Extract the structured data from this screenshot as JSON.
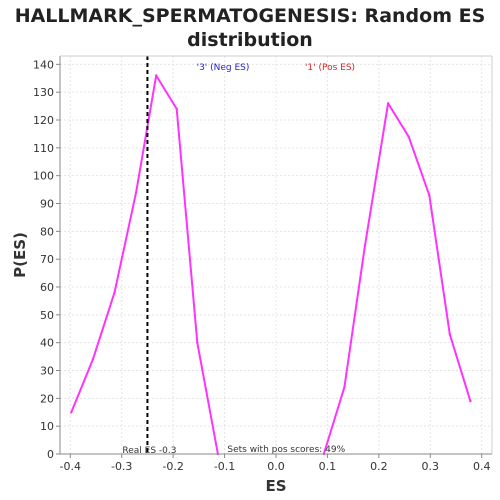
{
  "chart_data": {
    "type": "line",
    "title_lines": [
      "HALLMARK_SPERMATOGENESIS: Random ES",
      "distribution"
    ],
    "xlabel": "ES",
    "ylabel": "P(ES)",
    "xlim": [
      -0.42,
      0.42
    ],
    "ylim": [
      0,
      143
    ],
    "x_ticks": [
      -0.4,
      -0.3,
      -0.2,
      -0.1,
      0.0,
      0.1,
      0.2,
      0.3,
      0.4
    ],
    "x_tick_labels": [
      "-0.4",
      "-0.3",
      "-0.2",
      "-0.1",
      "0.0",
      "0.1",
      "0.2",
      "0.3",
      "0.4"
    ],
    "y_ticks": [
      0,
      10,
      20,
      30,
      40,
      50,
      60,
      70,
      80,
      90,
      100,
      110,
      120,
      130,
      140
    ],
    "y_tick_labels": [
      "0",
      "10",
      "20",
      "30",
      "40",
      "50",
      "60",
      "70",
      "80",
      "90",
      "100",
      "110",
      "120",
      "130",
      "140"
    ],
    "grid": true,
    "series": [
      {
        "color": "#ff33ff",
        "x": [
          -0.398,
          -0.356,
          -0.314,
          -0.272,
          -0.233,
          -0.193,
          -0.153,
          -0.113
        ],
        "y": [
          15,
          34,
          58,
          94,
          136,
          124,
          40,
          0
        ]
      },
      {
        "color": "#ff33ff",
        "x": [
          0.093,
          0.133,
          0.173,
          0.218,
          0.258,
          0.298,
          0.338,
          0.378
        ],
        "y": [
          0,
          24,
          75,
          126,
          114,
          93,
          43,
          19
        ]
      }
    ],
    "legend": [
      {
        "label": "'3' (Neg ES)",
        "color": "#2222cc"
      },
      {
        "label": "'1' (Pos ES)",
        "color": "#dd2222"
      }
    ],
    "real_es": {
      "value": -0.25,
      "label": "Real ES -0.3"
    },
    "pos_scores_note": "Sets with pos scores: 49%"
  }
}
